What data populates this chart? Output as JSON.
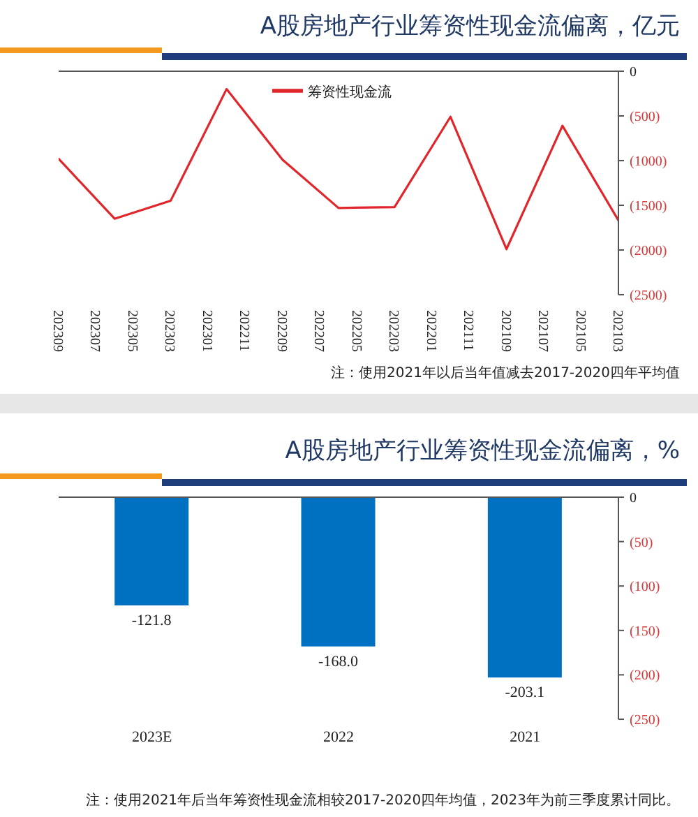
{
  "chart_data": [
    {
      "type": "line",
      "title": "A股房地产行业筹资性现金流偏离，亿元",
      "x": [
        "2021-03",
        "2021-06",
        "2021-09",
        "2021-12",
        "2022-03",
        "2022-06",
        "2022-09",
        "2022-12",
        "2023-03",
        "2023-06",
        "2023-09"
      ],
      "series": [
        {
          "name": "筹资性现金流",
          "color": "#e0262b",
          "values": [
            -1670,
            -610,
            -1990,
            -510,
            -1520,
            -1530,
            -990,
            -200,
            -1450,
            -1650,
            -980
          ]
        }
      ],
      "xlim": [
        "2023-09",
        "2021-03"
      ],
      "xticks": [
        {
          "value": "2021-03",
          "label": "202103"
        },
        {
          "value": "2021-05",
          "label": "202105"
        },
        {
          "value": "2021-07",
          "label": "202107"
        },
        {
          "value": "2021-09",
          "label": "202109"
        },
        {
          "value": "2021-11",
          "label": "202111"
        },
        {
          "value": "2022-01",
          "label": "202201"
        },
        {
          "value": "2022-03",
          "label": "202203"
        },
        {
          "value": "2022-05",
          "label": "202205"
        },
        {
          "value": "2022-07",
          "label": "202207"
        },
        {
          "value": "2022-09",
          "label": "202209"
        },
        {
          "value": "2022-11",
          "label": "202211"
        },
        {
          "value": "2023-01",
          "label": "202301"
        },
        {
          "value": "2023-03",
          "label": "202303"
        },
        {
          "value": "2023-05",
          "label": "202305"
        },
        {
          "value": "2023-07",
          "label": "202307"
        },
        {
          "value": "2023-09",
          "label": "202309"
        }
      ],
      "ylim": [
        -2500,
        0
      ],
      "yticks": [
        {
          "value": -2500,
          "label": "(2500)"
        },
        {
          "value": -2000,
          "label": "(2000)"
        },
        {
          "value": -1500,
          "label": "(1500)"
        },
        {
          "value": -1000,
          "label": "(1000)"
        },
        {
          "value": -500,
          "label": "(500)"
        },
        0
      ],
      "legend": "top",
      "annotations": [
        "注：使用2021年以后当年值减去2017-2020四年平均值"
      ]
    },
    {
      "type": "bar",
      "title": "A股房地产行业筹资性现金流偏离，%",
      "categories": [
        "2023E",
        "2022",
        "2021"
      ],
      "values": [
        -121.8,
        -168.0,
        -203.1
      ],
      "value_labels": [
        "-121.8",
        "-168.0",
        "-203.1"
      ],
      "color": "#0070c0",
      "ylim": [
        -250,
        0
      ],
      "yticks": [
        {
          "value": -250,
          "label": "(250)"
        },
        {
          "value": -200,
          "label": "(200)"
        },
        {
          "value": -150,
          "label": "(150)"
        },
        {
          "value": -100,
          "label": "(100)"
        },
        {
          "value": -50,
          "label": "(50)"
        },
        0
      ],
      "annotations": [
        "注：使用2021年后当年筹资性现金流相较2017-2020四年均值，2023年为前三季度累计同比。"
      ]
    }
  ]
}
